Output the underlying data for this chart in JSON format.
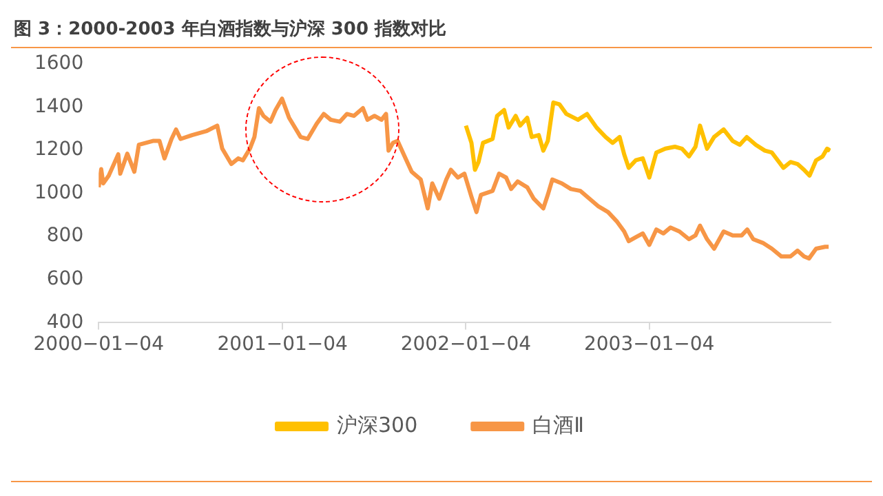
{
  "chart_data": {
    "type": "line",
    "title": "图 3：2000-2003 年白酒指数与沪深 300 指数对比",
    "ylim": [
      400,
      1600
    ],
    "yticks": [
      400,
      600,
      800,
      1000,
      1200,
      1400,
      1600
    ],
    "xlim": [
      "2000-01-04",
      "2003-12-31"
    ],
    "xticks": [
      {
        "value": "2000-01-04",
        "label": "2000−01−04"
      },
      {
        "value": "2001-01-04",
        "label": "2001−01−04"
      },
      {
        "value": "2002-01-04",
        "label": "2002−01−04"
      },
      {
        "value": "2003-01-04",
        "label": "2003−01−04"
      }
    ],
    "legend": "bottom",
    "marker": "none",
    "line_style": "solid",
    "series": [
      {
        "name": "沪深300",
        "color": "#ffc000",
        "x": [
          "2002-01-04",
          "2002-01-15",
          "2002-01-22",
          "2002-01-29",
          "2002-02-07",
          "2002-02-26",
          "2002-03-07",
          "2002-03-21",
          "2002-03-30",
          "2002-04-13",
          "2002-04-22",
          "2002-05-06",
          "2002-05-15",
          "2002-05-29",
          "2002-06-07",
          "2002-06-16",
          "2002-06-27",
          "2002-07-09",
          "2002-07-23",
          "2002-08-15",
          "2002-09-02",
          "2002-09-21",
          "2002-10-09",
          "2002-10-23",
          "2002-11-06",
          "2002-11-15",
          "2002-11-24",
          "2002-12-08",
          "2002-12-22",
          "2003-01-04",
          "2003-01-18",
          "2003-02-05",
          "2003-02-24",
          "2003-03-10",
          "2003-03-24",
          "2003-04-06",
          "2003-04-15",
          "2003-04-29",
          "2003-05-13",
          "2003-06-01",
          "2003-06-19",
          "2003-07-03",
          "2003-07-17",
          "2003-08-04",
          "2003-08-22",
          "2003-09-05",
          "2003-09-28",
          "2003-10-12",
          "2003-10-26",
          "2003-11-08",
          "2003-11-19",
          "2003-12-02",
          "2003-12-15",
          "2003-12-24",
          "2003-12-30"
        ],
        "values": [
          1314,
          1234,
          1109,
          1145,
          1234,
          1252,
          1359,
          1386,
          1305,
          1359,
          1314,
          1350,
          1261,
          1270,
          1198,
          1243,
          1421,
          1413,
          1368,
          1341,
          1368,
          1305,
          1261,
          1234,
          1261,
          1181,
          1118,
          1153,
          1162,
          1073,
          1189,
          1207,
          1216,
          1207,
          1171,
          1216,
          1314,
          1207,
          1261,
          1296,
          1243,
          1225,
          1261,
          1225,
          1198,
          1189,
          1118,
          1145,
          1136,
          1109,
          1082,
          1153,
          1171,
          1207,
          1198
        ]
      },
      {
        "name": "白酒Ⅱ",
        "color": "#f79646",
        "x": [
          "2000-01-04",
          "2000-01-09",
          "2000-01-13",
          "2000-01-24",
          "2000-02-12",
          "2000-02-16",
          "2000-03-01",
          "2000-03-15",
          "2000-03-24",
          "2000-04-07",
          "2000-04-21",
          "2000-05-04",
          "2000-05-14",
          "2000-05-28",
          "2000-06-06",
          "2000-06-15",
          "2000-07-08",
          "2000-08-05",
          "2000-08-27",
          "2000-09-06",
          "2000-09-24",
          "2000-10-08",
          "2000-10-17",
          "2000-10-31",
          "2000-11-09",
          "2000-11-18",
          "2000-11-27",
          "2000-12-11",
          "2000-12-21",
          "2001-01-03",
          "2001-01-17",
          "2001-02-09",
          "2001-02-23",
          "2001-03-13",
          "2001-03-27",
          "2001-04-10",
          "2001-04-28",
          "2001-05-12",
          "2001-05-26",
          "2001-06-13",
          "2001-06-22",
          "2001-07-06",
          "2001-07-20",
          "2001-07-29",
          "2001-08-03",
          "2001-08-12",
          "2001-08-21",
          "2001-09-04",
          "2001-09-18",
          "2001-10-06",
          "2001-10-20",
          "2001-10-29",
          "2001-11-12",
          "2001-11-26",
          "2001-12-05",
          "2001-12-19",
          "2002-01-01",
          "2002-01-15",
          "2002-01-25",
          "2002-02-03",
          "2002-02-26",
          "2002-03-11",
          "2002-03-25",
          "2002-04-04",
          "2002-04-17",
          "2002-05-06",
          "2002-05-19",
          "2002-06-07",
          "2002-06-16",
          "2002-06-25",
          "2002-07-14",
          "2002-08-01",
          "2002-08-20",
          "2002-09-07",
          "2002-09-25",
          "2002-10-14",
          "2002-11-01",
          "2002-11-15",
          "2002-11-24",
          "2002-12-08",
          "2002-12-22",
          "2003-01-04",
          "2003-01-18",
          "2003-02-01",
          "2003-02-15",
          "2003-03-05",
          "2003-03-24",
          "2003-04-06",
          "2003-04-15",
          "2003-04-29",
          "2003-05-13",
          "2003-06-01",
          "2003-06-19",
          "2003-07-07",
          "2003-07-18",
          "2003-07-30",
          "2003-08-18",
          "2003-09-05",
          "2003-09-24",
          "2003-10-12",
          "2003-10-26",
          "2003-11-08",
          "2003-11-18",
          "2003-12-02",
          "2003-12-20",
          "2003-12-27"
        ],
        "values": [
          1028,
          1112,
          1046,
          1082,
          1181,
          1091,
          1184,
          1100,
          1225,
          1234,
          1243,
          1243,
          1162,
          1252,
          1296,
          1252,
          1270,
          1288,
          1314,
          1207,
          1136,
          1162,
          1153,
          1207,
          1261,
          1395,
          1359,
          1332,
          1386,
          1439,
          1350,
          1261,
          1252,
          1323,
          1368,
          1341,
          1332,
          1368,
          1359,
          1395,
          1341,
          1359,
          1341,
          1368,
          1198,
          1234,
          1243,
          1171,
          1100,
          1064,
          930,
          1046,
          975,
          1064,
          1109,
          1073,
          1091,
          984,
          913,
          993,
          1011,
          1091,
          1073,
          1020,
          1055,
          1028,
          975,
          930,
          993,
          1064,
          1046,
          1020,
          1011,
          975,
          939,
          913,
          868,
          823,
          778,
          796,
          814,
          761,
          832,
          814,
          841,
          823,
          787,
          805,
          850,
          787,
          743,
          823,
          805,
          805,
          832,
          787,
          770,
          743,
          707,
          707,
          734,
          707,
          698,
          743,
          752,
          752
        ]
      }
    ]
  }
}
